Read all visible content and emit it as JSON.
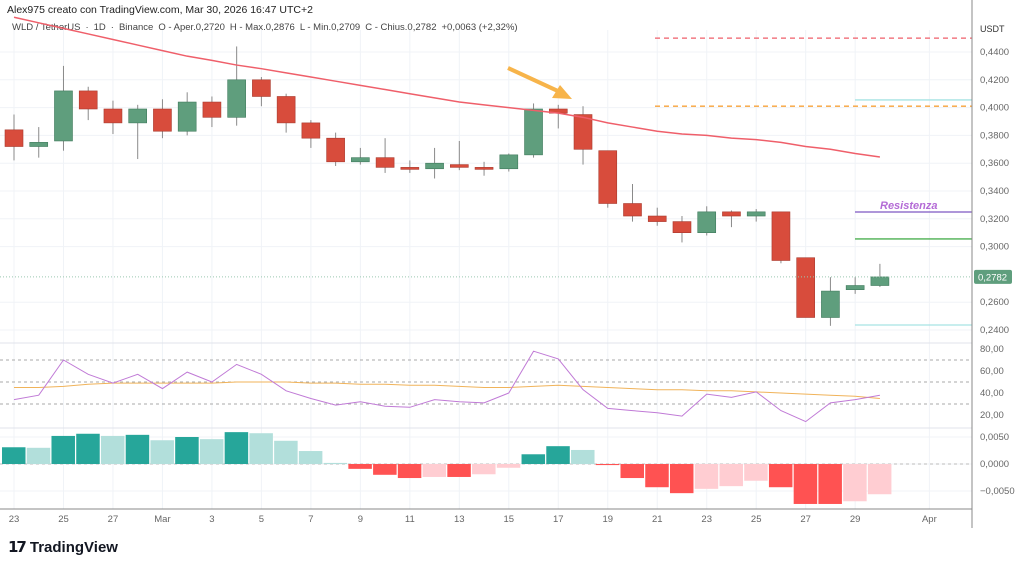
{
  "header": {
    "author_line": "Alex975 creato con TradingView.com, Mar 30, 2026 16:47 UTC+2",
    "symbol": "WLD / TetherUS",
    "interval": "1D",
    "exchange": "Binance",
    "open": "O - Aper.0,2720",
    "high": "H - Max.0,2876",
    "low": "L - Min.0,2709",
    "close": "C - Chius.0,2782",
    "change": "+0,0063 (+2,32%)"
  },
  "colors": {
    "up": "#5f9e7d",
    "down": "#d84c3c",
    "ma": "#ef5f6a",
    "rsi": "#c07ad6",
    "rsi_ma": "#f0b35a",
    "hist_up_strong": "#26a69a",
    "hist_up_weak": "#b2dfdb",
    "hist_down_strong": "#ff5252",
    "hist_down_weak": "#ffcdd2",
    "arrow": "#f7b44a",
    "resistance": "#7e57c2",
    "last_price": "#5f9e7d"
  },
  "price_axis": {
    "unit": "USDT",
    "ticks": [
      "0,4400",
      "0,4200",
      "0,4000",
      "0,3800",
      "0,3600",
      "0,3400",
      "0,3200",
      "0,3000",
      "0,2600",
      "0,2400"
    ],
    "tick_values": [
      0.44,
      0.42,
      0.4,
      0.38,
      0.36,
      0.34,
      0.32,
      0.3,
      0.26,
      0.24
    ],
    "last_price": "0,2782",
    "last_value": 0.2782
  },
  "rsi_axis": {
    "ticks": [
      "80,00",
      "60,00",
      "40,00",
      "20,00"
    ],
    "tick_values": [
      80,
      60,
      40,
      20
    ]
  },
  "macd_axis": {
    "ticks": [
      "0,0050",
      "0,0000",
      "−0,0050"
    ],
    "tick_values": [
      0.005,
      0,
      -0.005
    ]
  },
  "date_axis": {
    "labels": [
      "23",
      "25",
      "27",
      "Mar",
      "3",
      "5",
      "7",
      "9",
      "11",
      "13",
      "15",
      "17",
      "19",
      "21",
      "23",
      "25",
      "27",
      "29",
      "Apr"
    ],
    "label_day_index": [
      0,
      2,
      4,
      6,
      8,
      10,
      12,
      14,
      16,
      18,
      20,
      22,
      24,
      26,
      28,
      30,
      32,
      34,
      37
    ]
  },
  "annotations": {
    "resistance_label": "Resistenza",
    "levels": [
      {
        "name": "red-dashed-level",
        "value": 0.45,
        "style": "dashed",
        "color": "#ef5f6a"
      },
      {
        "name": "orange-dashed-level",
        "value": 0.401,
        "style": "dashed",
        "color": "#f7a23a"
      },
      {
        "name": "cyan-upper-level",
        "value": 0.4055,
        "style": "solid",
        "color": "#a6e3e4"
      },
      {
        "name": "resistance-level",
        "value": 0.3249,
        "style": "solid",
        "color": "#7e57c2"
      },
      {
        "name": "green-level",
        "value": 0.3055,
        "style": "solid",
        "color": "#4caf50"
      },
      {
        "name": "cyan-lower-level",
        "value": 0.2436,
        "style": "solid",
        "color": "#a6e3e4"
      }
    ]
  },
  "chart_data": {
    "type": "candlestick",
    "dates": [
      "Feb 23",
      "Feb 24",
      "Feb 25",
      "Feb 26",
      "Feb 27",
      "Feb 28",
      "Mar 1",
      "Mar 2",
      "Mar 3",
      "Mar 4",
      "Mar 5",
      "Mar 6",
      "Mar 7",
      "Mar 8",
      "Mar 9",
      "Mar 10",
      "Mar 11",
      "Mar 12",
      "Mar 13",
      "Mar 14",
      "Mar 15",
      "Mar 16",
      "Mar 17",
      "Mar 18",
      "Mar 19",
      "Mar 20",
      "Mar 21",
      "Mar 22",
      "Mar 23",
      "Mar 24",
      "Mar 25",
      "Mar 26",
      "Mar 27",
      "Mar 28",
      "Mar 29",
      "Mar 30"
    ],
    "ohlc": [
      [
        0.384,
        0.395,
        0.362,
        0.372
      ],
      [
        0.372,
        0.386,
        0.364,
        0.375
      ],
      [
        0.376,
        0.43,
        0.369,
        0.412
      ],
      [
        0.412,
        0.415,
        0.391,
        0.399
      ],
      [
        0.399,
        0.405,
        0.381,
        0.389
      ],
      [
        0.389,
        0.402,
        0.363,
        0.399
      ],
      [
        0.399,
        0.406,
        0.378,
        0.383
      ],
      [
        0.383,
        0.411,
        0.38,
        0.404
      ],
      [
        0.404,
        0.408,
        0.386,
        0.393
      ],
      [
        0.393,
        0.444,
        0.387,
        0.42
      ],
      [
        0.42,
        0.422,
        0.401,
        0.408
      ],
      [
        0.408,
        0.41,
        0.382,
        0.389
      ],
      [
        0.389,
        0.391,
        0.371,
        0.378
      ],
      [
        0.378,
        0.382,
        0.358,
        0.361
      ],
      [
        0.361,
        0.371,
        0.359,
        0.364
      ],
      [
        0.364,
        0.378,
        0.353,
        0.357
      ],
      [
        0.357,
        0.362,
        0.353,
        0.356
      ],
      [
        0.356,
        0.371,
        0.349,
        0.36
      ],
      [
        0.359,
        0.376,
        0.355,
        0.357
      ],
      [
        0.357,
        0.361,
        0.351,
        0.356
      ],
      [
        0.356,
        0.367,
        0.354,
        0.366
      ],
      [
        0.366,
        0.403,
        0.364,
        0.399
      ],
      [
        0.399,
        0.402,
        0.385,
        0.396
      ],
      [
        0.395,
        0.401,
        0.359,
        0.37
      ],
      [
        0.369,
        0.369,
        0.328,
        0.331
      ],
      [
        0.331,
        0.345,
        0.318,
        0.322
      ],
      [
        0.322,
        0.328,
        0.315,
        0.318
      ],
      [
        0.318,
        0.322,
        0.303,
        0.31
      ],
      [
        0.31,
        0.329,
        0.308,
        0.325
      ],
      [
        0.325,
        0.326,
        0.314,
        0.322
      ],
      [
        0.322,
        0.327,
        0.318,
        0.325
      ],
      [
        0.325,
        0.325,
        0.288,
        0.29
      ],
      [
        0.292,
        0.292,
        0.249,
        0.249
      ],
      [
        0.249,
        0.278,
        0.243,
        0.268
      ],
      [
        0.269,
        0.278,
        0.266,
        0.272
      ],
      [
        0.272,
        0.2876,
        0.2709,
        0.2782
      ]
    ],
    "moving_average": [
      0.465,
      0.461,
      0.457,
      0.453,
      0.449,
      0.445,
      0.441,
      0.437,
      0.434,
      0.4306,
      0.428,
      0.425,
      0.422,
      0.419,
      0.416,
      0.413,
      0.41,
      0.407,
      0.404,
      0.402,
      0.4,
      0.398,
      0.396,
      0.393,
      0.389,
      0.386,
      0.383,
      0.381,
      0.38,
      0.378,
      0.377,
      0.375,
      0.372,
      0.37,
      0.367,
      0.3645
    ],
    "rsi": [
      34,
      38,
      70,
      57,
      49,
      57,
      44,
      59,
      50,
      66,
      57,
      42,
      35,
      29,
      32,
      28,
      27,
      34,
      32,
      31,
      40,
      78,
      71,
      43,
      26,
      24,
      22,
      19,
      39,
      36,
      41,
      24,
      14,
      31,
      34,
      38
    ],
    "rsi_ma": [
      45,
      45,
      46,
      48,
      49,
      49,
      49,
      49,
      49,
      50,
      50,
      50,
      49,
      49,
      48,
      48,
      47,
      47,
      46,
      45,
      45,
      46,
      47,
      46,
      45,
      44,
      43,
      43,
      42,
      42,
      41,
      40,
      39,
      38,
      37,
      35
    ],
    "rsi_bands": [
      70,
      50,
      30
    ],
    "macd_histogram": [
      0.0031,
      0.003,
      0.0052,
      0.0056,
      0.0052,
      0.0054,
      0.0044,
      0.005,
      0.0046,
      0.0059,
      0.0057,
      0.0043,
      0.0024,
      0.0002,
      -0.0009,
      -0.002,
      -0.0026,
      -0.0024,
      -0.0024,
      -0.0019,
      -0.0007,
      0.0018,
      0.0033,
      0.0026,
      -0.0002,
      -0.0026,
      -0.0043,
      -0.0054,
      -0.0046,
      -0.0041,
      -0.0031,
      -0.0043,
      -0.0074,
      -0.0074,
      -0.0069,
      -0.0056
    ]
  },
  "branding": {
    "logo_text": "TradingView",
    "logo_mark": "TV"
  }
}
